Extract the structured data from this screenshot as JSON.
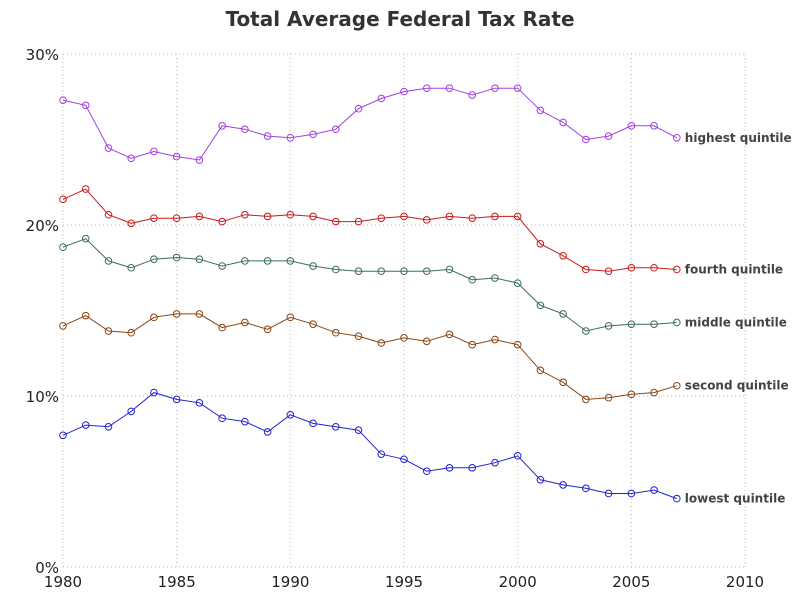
{
  "chart_data": {
    "type": "line",
    "title": "Total Average Federal Tax Rate",
    "xlabel": "",
    "ylabel": "",
    "xlim": [
      1980,
      2010
    ],
    "ylim": [
      0,
      30
    ],
    "x_ticks": [
      1980,
      1985,
      1990,
      1995,
      2000,
      2005,
      2010
    ],
    "x_tick_labels": [
      "1980",
      "1985",
      "1990",
      "1995",
      "2000",
      "2005",
      "2010"
    ],
    "y_ticks": [
      0,
      10,
      20,
      30
    ],
    "y_tick_labels": [
      "0%",
      "10%",
      "20%",
      "30%"
    ],
    "grid": true,
    "legend": "none (series labeled at line ends)",
    "x": [
      1980,
      1981,
      1982,
      1983,
      1984,
      1985,
      1986,
      1987,
      1988,
      1989,
      1990,
      1991,
      1992,
      1993,
      1994,
      1995,
      1996,
      1997,
      1998,
      1999,
      2000,
      2001,
      2002,
      2003,
      2004,
      2005,
      2006,
      2007
    ],
    "series": [
      {
        "name": "highest quintile",
        "color": "#a040e0",
        "values": [
          27.3,
          27.0,
          24.5,
          23.9,
          24.3,
          24.0,
          23.8,
          25.8,
          25.6,
          25.2,
          25.1,
          25.3,
          25.6,
          26.8,
          27.4,
          27.8,
          28.0,
          28.0,
          27.6,
          28.0,
          28.0,
          26.7,
          26.0,
          25.0,
          25.2,
          25.8,
          25.8,
          25.1
        ]
      },
      {
        "name": "fourth quintile",
        "color": "#cc1a1a",
        "values": [
          21.5,
          22.1,
          20.6,
          20.1,
          20.4,
          20.4,
          20.5,
          20.2,
          20.6,
          20.5,
          20.6,
          20.5,
          20.2,
          20.2,
          20.4,
          20.5,
          20.3,
          20.5,
          20.4,
          20.5,
          20.5,
          18.9,
          18.2,
          17.4,
          17.3,
          17.5,
          17.5,
          17.4
        ]
      },
      {
        "name": "middle quintile",
        "color": "#3d6e55",
        "values": [
          18.7,
          19.2,
          17.9,
          17.5,
          18.0,
          18.1,
          18.0,
          17.6,
          17.9,
          17.9,
          17.9,
          17.6,
          17.4,
          17.3,
          17.3,
          17.3,
          17.3,
          17.4,
          16.8,
          16.9,
          16.6,
          15.3,
          14.8,
          13.8,
          14.1,
          14.2,
          14.2,
          14.3
        ]
      },
      {
        "name": "second quintile",
        "color": "#8b4513",
        "values": [
          14.1,
          14.7,
          13.8,
          13.7,
          14.6,
          14.8,
          14.8,
          14.0,
          14.3,
          13.9,
          14.6,
          14.2,
          13.7,
          13.5,
          13.1,
          13.4,
          13.2,
          13.6,
          13.0,
          13.3,
          13.0,
          11.5,
          10.8,
          9.8,
          9.9,
          10.1,
          10.2,
          10.6
        ]
      },
      {
        "name": "lowest quintile",
        "color": "#2323cc",
        "values": [
          7.7,
          8.3,
          8.2,
          9.1,
          10.2,
          9.8,
          9.6,
          8.7,
          8.5,
          7.9,
          8.9,
          8.4,
          8.2,
          8.0,
          6.6,
          6.3,
          5.6,
          5.8,
          5.8,
          6.1,
          6.5,
          5.1,
          4.8,
          4.6,
          4.3,
          4.3,
          4.5,
          4.0
        ]
      }
    ]
  }
}
